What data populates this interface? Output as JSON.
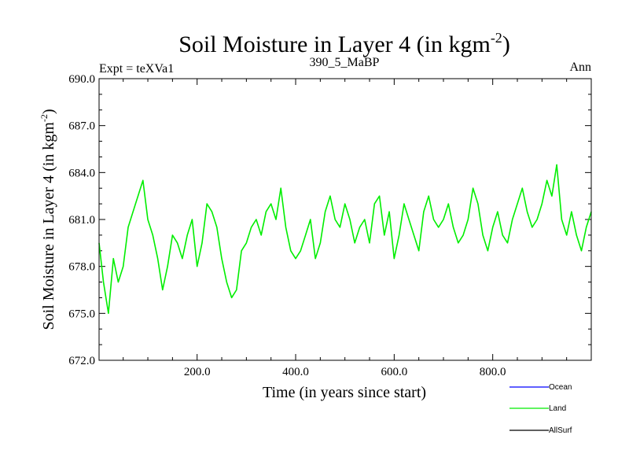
{
  "chart_data": {
    "type": "line",
    "title": "Soil Moisture in Layer 4 (in kgm",
    "title_sup": "-2",
    "title_end": ")",
    "subtitle_left": "Expt = teXVa1",
    "subtitle_center": "390_5_MaBP",
    "subtitle_right": "Ann",
    "xlabel": "Time (in years since start)",
    "ylabel": "Soil Moisture in Layer 4 (in kgm",
    "ylabel_sup": "-2",
    "ylabel_end": ")",
    "xlim": [
      1,
      1000
    ],
    "ylim": [
      672.0,
      690.0
    ],
    "xticks": [
      200,
      400,
      600,
      800
    ],
    "xtick_labels": [
      "200.0",
      "400.0",
      "600.0",
      "800.0"
    ],
    "yticks": [
      672,
      675,
      678,
      681,
      684,
      687,
      690
    ],
    "ytick_labels": [
      "672.0",
      "675.0",
      "678.0",
      "681.0",
      "684.0",
      "687.0",
      "690.0"
    ],
    "legend": [
      "Ocean",
      "Land",
      "AllSurf"
    ],
    "legend_placement": "bottom-right",
    "series": [
      {
        "name": "Land",
        "color": "#00ee00",
        "x": [
          1,
          10,
          20,
          30,
          40,
          50,
          60,
          70,
          80,
          90,
          100,
          110,
          120,
          130,
          140,
          150,
          160,
          170,
          180,
          190,
          200,
          210,
          220,
          230,
          240,
          250,
          260,
          270,
          280,
          290,
          300,
          310,
          320,
          330,
          340,
          350,
          360,
          370,
          380,
          390,
          400,
          410,
          420,
          430,
          440,
          450,
          460,
          470,
          480,
          490,
          500,
          510,
          520,
          530,
          540,
          550,
          560,
          570,
          580,
          590,
          600,
          610,
          620,
          630,
          640,
          650,
          660,
          670,
          680,
          690,
          700,
          710,
          720,
          730,
          740,
          750,
          760,
          770,
          780,
          790,
          800,
          810,
          820,
          830,
          840,
          850,
          860,
          870,
          880,
          890,
          900,
          910,
          920,
          930,
          940,
          950,
          960,
          970,
          980,
          990,
          1000
        ],
        "values": [
          679.5,
          677.0,
          675.0,
          678.5,
          677.0,
          678.0,
          680.5,
          681.5,
          682.5,
          683.5,
          681.0,
          680.0,
          678.5,
          676.5,
          678.0,
          680.0,
          679.5,
          678.5,
          680.0,
          681.0,
          678.0,
          679.5,
          682.0,
          681.5,
          680.5,
          678.5,
          677.0,
          676.0,
          676.5,
          679.0,
          679.5,
          680.5,
          681.0,
          680.0,
          681.5,
          682.0,
          681.0,
          683.0,
          680.5,
          679.0,
          678.5,
          679.0,
          680.0,
          681.0,
          678.5,
          679.5,
          681.5,
          682.5,
          681.0,
          680.5,
          682.0,
          681.0,
          679.5,
          680.5,
          681.0,
          679.5,
          682.0,
          682.5,
          680.0,
          681.5,
          678.5,
          680.0,
          682.0,
          681.0,
          680.0,
          679.0,
          681.5,
          682.5,
          681.0,
          680.5,
          681.0,
          682.0,
          680.5,
          679.5,
          680.0,
          681.0,
          683.0,
          682.0,
          680.0,
          679.0,
          680.5,
          681.5,
          680.0,
          679.5,
          681.0,
          682.0,
          683.0,
          681.5,
          680.5,
          681.0,
          682.0,
          683.5,
          682.5,
          684.5,
          681.0,
          680.0,
          681.5,
          680.0,
          679.0,
          680.5,
          681.5
        ]
      },
      {
        "name": "Ocean",
        "color": "#0000ff",
        "values": []
      },
      {
        "name": "AllSurf",
        "color": "#000000",
        "values": []
      }
    ]
  }
}
